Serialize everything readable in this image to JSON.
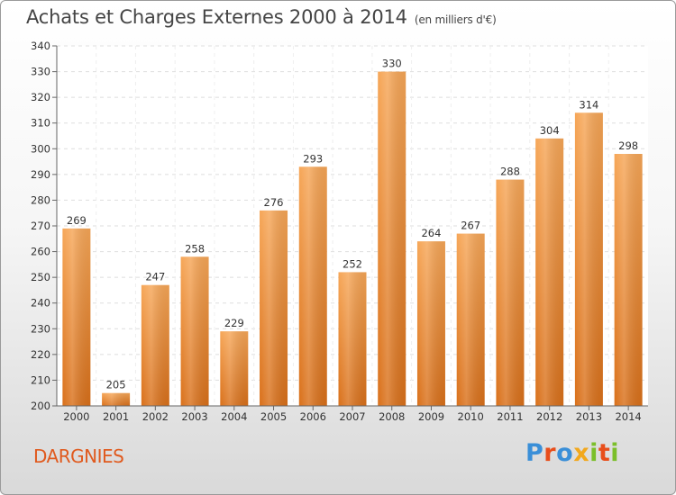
{
  "header": {
    "title": "Achats et Charges Externes 2000 à 2014",
    "subtitle": "(en milliers d'€)"
  },
  "footer": {
    "location": "DARGNIES",
    "brand": "Proxiti",
    "brand_colors": [
      "#3a8fd8",
      "#e84e1b",
      "#3a8fd8",
      "#f2a81d",
      "#7bbf2a",
      "#e84e1b",
      "#7bbf2a"
    ]
  },
  "chart_data": {
    "type": "bar",
    "categories": [
      "2000",
      "2001",
      "2002",
      "2003",
      "2004",
      "2005",
      "2006",
      "2007",
      "2008",
      "2009",
      "2010",
      "2011",
      "2012",
      "2013",
      "2014"
    ],
    "values": [
      269,
      205,
      247,
      258,
      229,
      276,
      293,
      252,
      330,
      264,
      267,
      288,
      304,
      314,
      298
    ],
    "ylim": [
      200,
      340
    ],
    "yticks": [
      200,
      210,
      220,
      230,
      240,
      250,
      260,
      270,
      280,
      290,
      300,
      310,
      320,
      330,
      340
    ],
    "grid": true,
    "bar_color_top": "#f6a657",
    "bar_color_bottom": "#d9701a"
  }
}
